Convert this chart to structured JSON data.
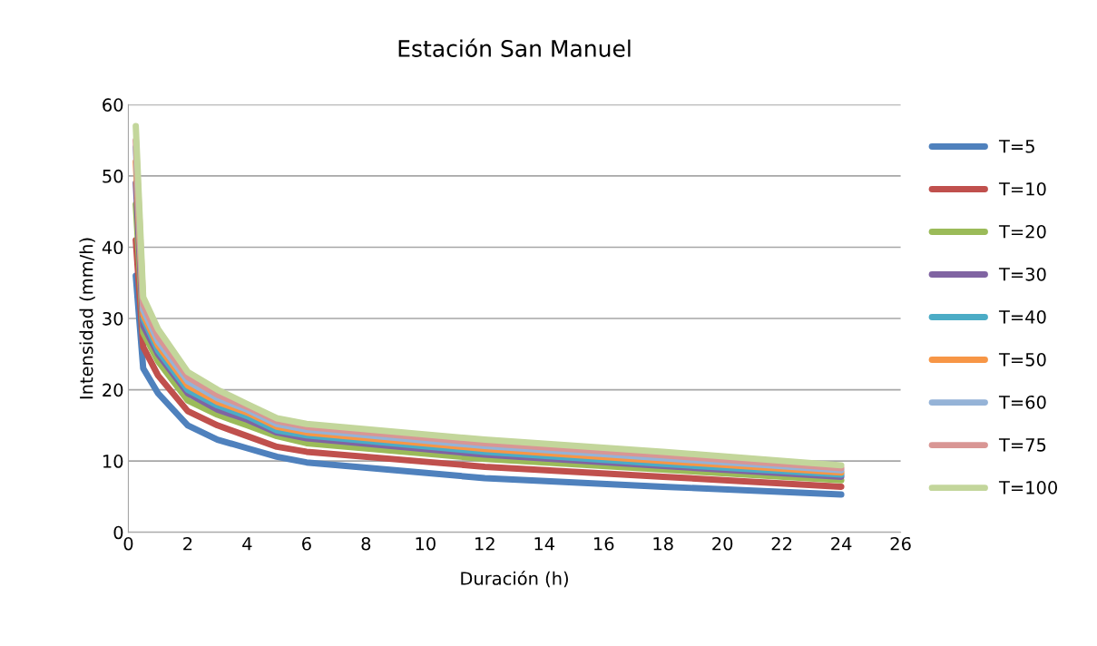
{
  "chart_data": {
    "type": "line",
    "title": "Estación San Manuel",
    "xlabel": "Duración (h)",
    "ylabel": "Intensidad (mm/h)",
    "x": [
      0.25,
      0.5,
      1,
      2,
      3,
      4,
      5,
      6,
      12,
      18,
      24
    ],
    "series": [
      {
        "name": "T=5",
        "color": "#4f81bd",
        "values": [
          36,
          23,
          19.5,
          15,
          13,
          11.8,
          10.6,
          9.8,
          7.6,
          6.4,
          5.3
        ]
      },
      {
        "name": "T=10",
        "color": "#c0504d",
        "values": [
          41,
          26,
          22,
          17,
          15,
          13.5,
          12,
          11.3,
          9.2,
          7.8,
          6.4
        ]
      },
      {
        "name": "T=20",
        "color": "#9bbb59",
        "values": [
          46,
          28,
          24,
          18.5,
          16.5,
          15,
          13.5,
          12.5,
          10.3,
          8.8,
          7.3
        ]
      },
      {
        "name": "T=30",
        "color": "#8064a2",
        "values": [
          49,
          29,
          25,
          19.5,
          17.2,
          15.8,
          14,
          13.2,
          10.9,
          9.3,
          7.8
        ]
      },
      {
        "name": "T=40",
        "color": "#4bacc6",
        "values": [
          null,
          30,
          25.5,
          20,
          17.8,
          16.3,
          14.3,
          13.6,
          11.3,
          9.6,
          8.1
        ]
      },
      {
        "name": "T=50",
        "color": "#f79646",
        "values": [
          52,
          30.5,
          26.2,
          20.6,
          18.3,
          16.8,
          14.8,
          14,
          11.7,
          10,
          8.4
        ]
      },
      {
        "name": "T=60",
        "color": "#95b3d7",
        "values": [
          54,
          31.2,
          26.8,
          21.2,
          18.8,
          17.2,
          15.2,
          14.4,
          12.1,
          10.4,
          8.7
        ]
      },
      {
        "name": "T=75",
        "color": "#d99694",
        "values": [
          55,
          32,
          27.5,
          21.8,
          19.3,
          17.6,
          15.6,
          14.8,
          12.5,
          10.8,
          9.0
        ]
      },
      {
        "name": "T=100",
        "color": "#c3d69b",
        "values": [
          57,
          33,
          28.5,
          22.5,
          20,
          18,
          16,
          15.2,
          13,
          11.3,
          9.4
        ]
      }
    ],
    "xlim": [
      0,
      26
    ],
    "xticks": [
      0,
      2,
      4,
      6,
      8,
      10,
      12,
      14,
      16,
      18,
      20,
      22,
      24,
      26
    ],
    "ylim": [
      0,
      60
    ],
    "yticks": [
      0,
      10,
      20,
      30,
      40,
      50,
      60
    ],
    "grid": "y",
    "legend": "right"
  }
}
